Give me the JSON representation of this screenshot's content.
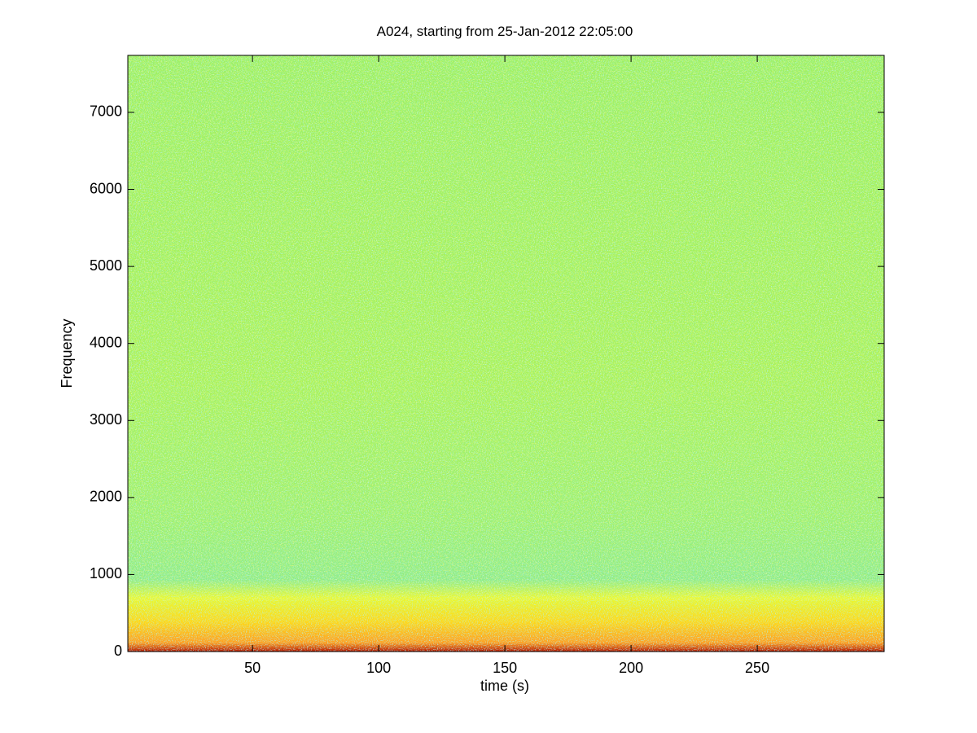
{
  "chart_data": {
    "type": "spectrogram",
    "title": "A024, starting from 25-Jan-2012 22:05:00",
    "x_label": "time (s)",
    "y_label": "Frequency",
    "xlim": [
      0.6,
      300.3
    ],
    "ylim": [
      0,
      7740
    ],
    "xticks": [
      50,
      100,
      150,
      200,
      250
    ],
    "yticks": [
      0,
      1000,
      2000,
      3000,
      4000,
      5000,
      6000,
      7000
    ]
  }
}
